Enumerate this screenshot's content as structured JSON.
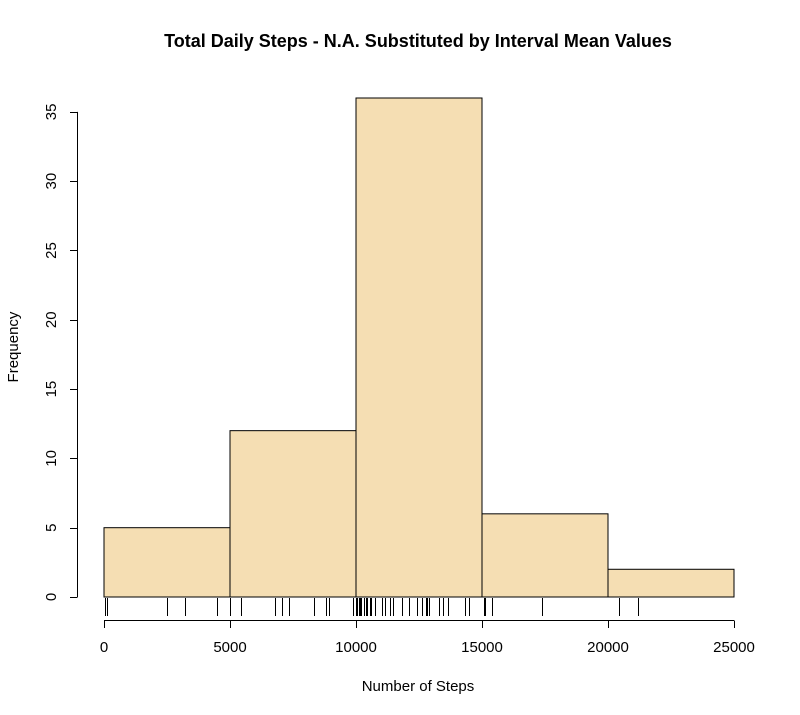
{
  "chart_data": {
    "type": "bar",
    "title": "Total Daily Steps - N.A. Substituted by Interval Mean Values",
    "xlabel": "Number of Steps",
    "ylabel": "Frequency",
    "bins": [
      {
        "start": 0,
        "end": 5000,
        "count": 5
      },
      {
        "start": 5000,
        "end": 10000,
        "count": 12
      },
      {
        "start": 10000,
        "end": 15000,
        "count": 36
      },
      {
        "start": 15000,
        "end": 20000,
        "count": 6
      },
      {
        "start": 20000,
        "end": 25000,
        "count": 2
      }
    ],
    "xlim": [
      0,
      25000
    ],
    "ylim": [
      0,
      36
    ],
    "x_ticks": [
      0,
      5000,
      10000,
      15000,
      20000,
      25000
    ],
    "y_ticks": [
      0,
      5,
      10,
      15,
      20,
      25,
      30,
      35
    ],
    "rug": [
      41,
      126,
      2492,
      3219,
      4472,
      5018,
      5441,
      6778,
      7047,
      7336,
      8334,
      8821,
      8918,
      9900,
      10000,
      10056,
      10119,
      10139,
      10183,
      10304,
      10395,
      10439,
      10571,
      10600,
      10765,
      10766,
      11015,
      11162,
      11352,
      11458,
      11829,
      11834,
      12116,
      12426,
      12608,
      12787,
      12811,
      12883,
      13294,
      13460,
      13646,
      14339,
      14478,
      15084,
      15098,
      15110,
      15414,
      17382,
      20427,
      21194
    ],
    "bar_fill": "#F5DEB3",
    "grid": false,
    "legend": "none"
  }
}
